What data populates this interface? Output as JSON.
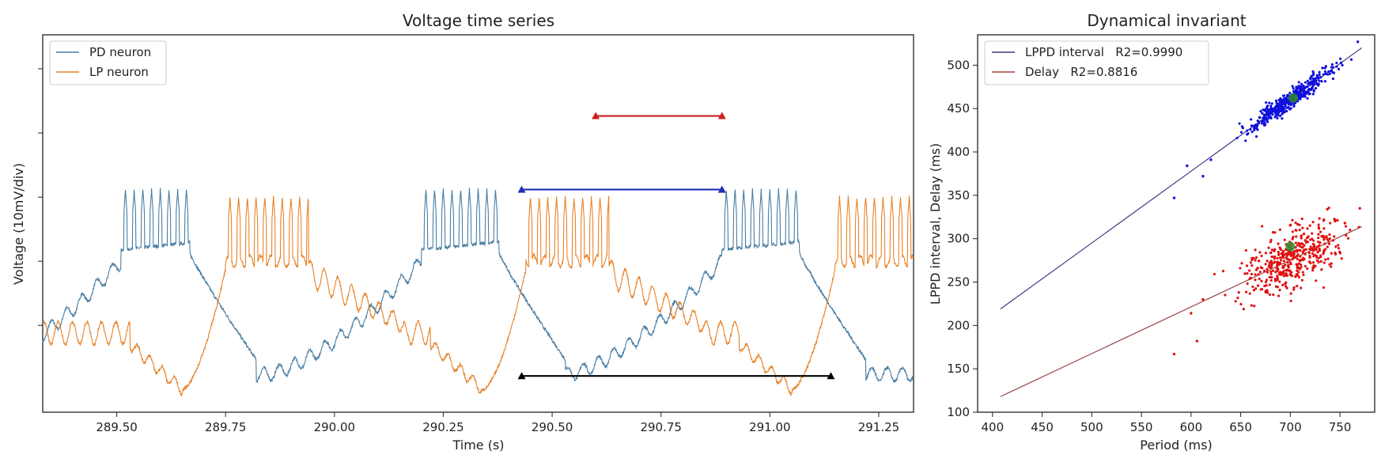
{
  "chart_data": [
    {
      "type": "line",
      "title": "Voltage time series",
      "xlabel": "Time (s)",
      "ylabel": "Voltage (10mV/div)",
      "xlim": [
        289.33,
        291.33
      ],
      "ylim": [
        0,
        100
      ],
      "x_ticks": [
        "289.50",
        "289.75",
        "290.00",
        "290.25",
        "290.50",
        "290.75",
        "291.00",
        "291.25"
      ],
      "x_tick_values": [
        289.5,
        289.75,
        290.0,
        290.25,
        290.5,
        290.75,
        291.0,
        291.25
      ],
      "y_ticks": [
        23,
        40,
        57,
        74,
        91
      ],
      "legend_position": "top-left",
      "series": [
        {
          "name": "PD neuron",
          "color": "#4a7ea3",
          "bursts": [
            {
              "start": 289.51,
              "end": 289.66,
              "spikes": [
                289.52,
                289.54,
                289.56,
                289.58,
                289.6,
                289.62,
                289.64,
                289.66
              ]
            },
            {
              "start": 290.2,
              "end": 290.37,
              "spikes": [
                290.21,
                290.23,
                290.25,
                290.27,
                290.29,
                290.31,
                290.33,
                290.35,
                290.37
              ]
            },
            {
              "start": 290.89,
              "end": 291.06,
              "spikes": [
                290.9,
                290.92,
                290.94,
                290.96,
                290.98,
                291.0,
                291.02,
                291.04,
                291.06
              ]
            }
          ]
        },
        {
          "name": "LP neuron",
          "color": "#e8832a",
          "bursts": [
            {
              "start": 289.75,
              "end": 289.94,
              "spikes": [
                289.76,
                289.78,
                289.8,
                289.82,
                289.84,
                289.86,
                289.88,
                289.9,
                289.92,
                289.94
              ]
            },
            {
              "start": 290.44,
              "end": 290.63,
              "spikes": [
                290.45,
                290.47,
                290.49,
                290.51,
                290.53,
                290.55,
                290.57,
                290.59,
                290.61,
                290.63
              ]
            },
            {
              "start": 291.15,
              "end": 291.33,
              "spikes": [
                291.16,
                291.18,
                291.2,
                291.22,
                291.24,
                291.26,
                291.28,
                291.3,
                291.32
              ]
            }
          ]
        }
      ],
      "intervals": [
        {
          "name": "Period",
          "color": "#000000",
          "x_start": 290.43,
          "x_end": 291.14,
          "y": 9.6
        },
        {
          "name": "LPPD interval",
          "color": "#1f2fb4",
          "x_start": 290.43,
          "x_end": 290.89,
          "y": 59
        },
        {
          "name": "Delay",
          "color": "#cc1f1f",
          "x_start": 290.6,
          "x_end": 290.89,
          "y": 78.5
        }
      ]
    },
    {
      "type": "scatter",
      "title": "Dynamical invariant",
      "xlabel": "Period (ms)",
      "ylabel": "LPPD interval, Delay (ms)",
      "xlim": [
        385,
        785
      ],
      "ylim": [
        100,
        535
      ],
      "x_ticks": [
        400,
        450,
        500,
        550,
        600,
        650,
        700,
        750
      ],
      "y_ticks": [
        100,
        150,
        200,
        250,
        300,
        350,
        400,
        450,
        500
      ],
      "legend_position": "top-left",
      "series": [
        {
          "name": "LPPD interval",
          "legend_label": "LPPD interval   R2=0.9990",
          "r2": "0.9990",
          "line_color": "#3a3a80",
          "point_color": "#1010dd",
          "fit": {
            "x": [
              408,
              772
            ],
            "y": [
              219,
              520
            ]
          },
          "cloud": {
            "x_mean": 700,
            "x_sd": 22,
            "slope": 0.83,
            "intercept": -120,
            "noise_sd": 5,
            "n": 420
          },
          "outliers": [
            [
              583,
              347
            ],
            [
              612,
              372
            ],
            [
              596,
              384
            ],
            [
              620,
              391
            ],
            [
              768,
              527
            ]
          ],
          "mean_point": [
            703,
            462
          ]
        },
        {
          "name": "Delay",
          "legend_label": "Delay   R2=0.8816",
          "r2": "0.8816",
          "line_color": "#a04545",
          "point_color": "#e01010",
          "fit": {
            "x": [
              408,
              772
            ],
            "y": [
              118,
              314
            ]
          },
          "cloud": {
            "x_mean": 700,
            "x_sd": 24,
            "slope": 0.55,
            "intercept": -110,
            "noise_sd": 18,
            "n": 420
          },
          "outliers": [
            [
              583,
              167
            ],
            [
              606,
              182
            ],
            [
              600,
              214
            ],
            [
              612,
              230
            ],
            [
              770,
              335
            ],
            [
              755,
              318
            ]
          ],
          "mean_point": [
            700,
            291
          ],
          "mean_point_color": "#2a8a2a"
        }
      ]
    }
  ]
}
